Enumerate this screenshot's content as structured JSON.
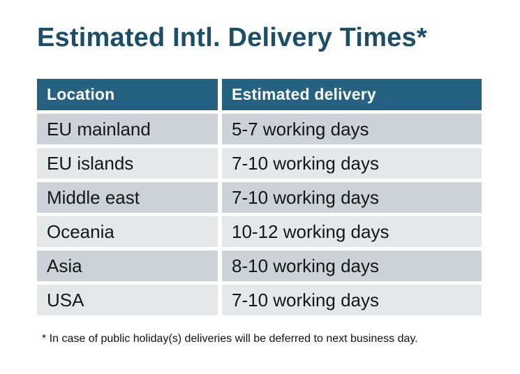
{
  "page": {
    "title": "Estimated Intl. Delivery Times*",
    "footnote": "* In case of public holiday(s) deliveries will be deferred to next business day."
  },
  "table": {
    "columns": [
      {
        "label": "Location"
      },
      {
        "label": "Estimated delivery"
      }
    ],
    "rows": [
      {
        "location": "EU mainland",
        "delivery": "5-7 working days"
      },
      {
        "location": "EU islands",
        "delivery": "7-10 working days"
      },
      {
        "location": "Middle east",
        "delivery": "7-10 working days"
      },
      {
        "location": "Oceania",
        "delivery": "10-12 working days"
      },
      {
        "location": "Asia",
        "delivery": "8-10 working days"
      },
      {
        "location": "USA",
        "delivery": "7-10 working days"
      }
    ]
  },
  "colors": {
    "title_text": "#1c4e68",
    "header_bg": "#256282",
    "header_text": "#ffffff",
    "row_dark": "#cdd1d8",
    "row_light": "#e5e8eb",
    "cell_text": "#161616",
    "background": "#ffffff"
  }
}
